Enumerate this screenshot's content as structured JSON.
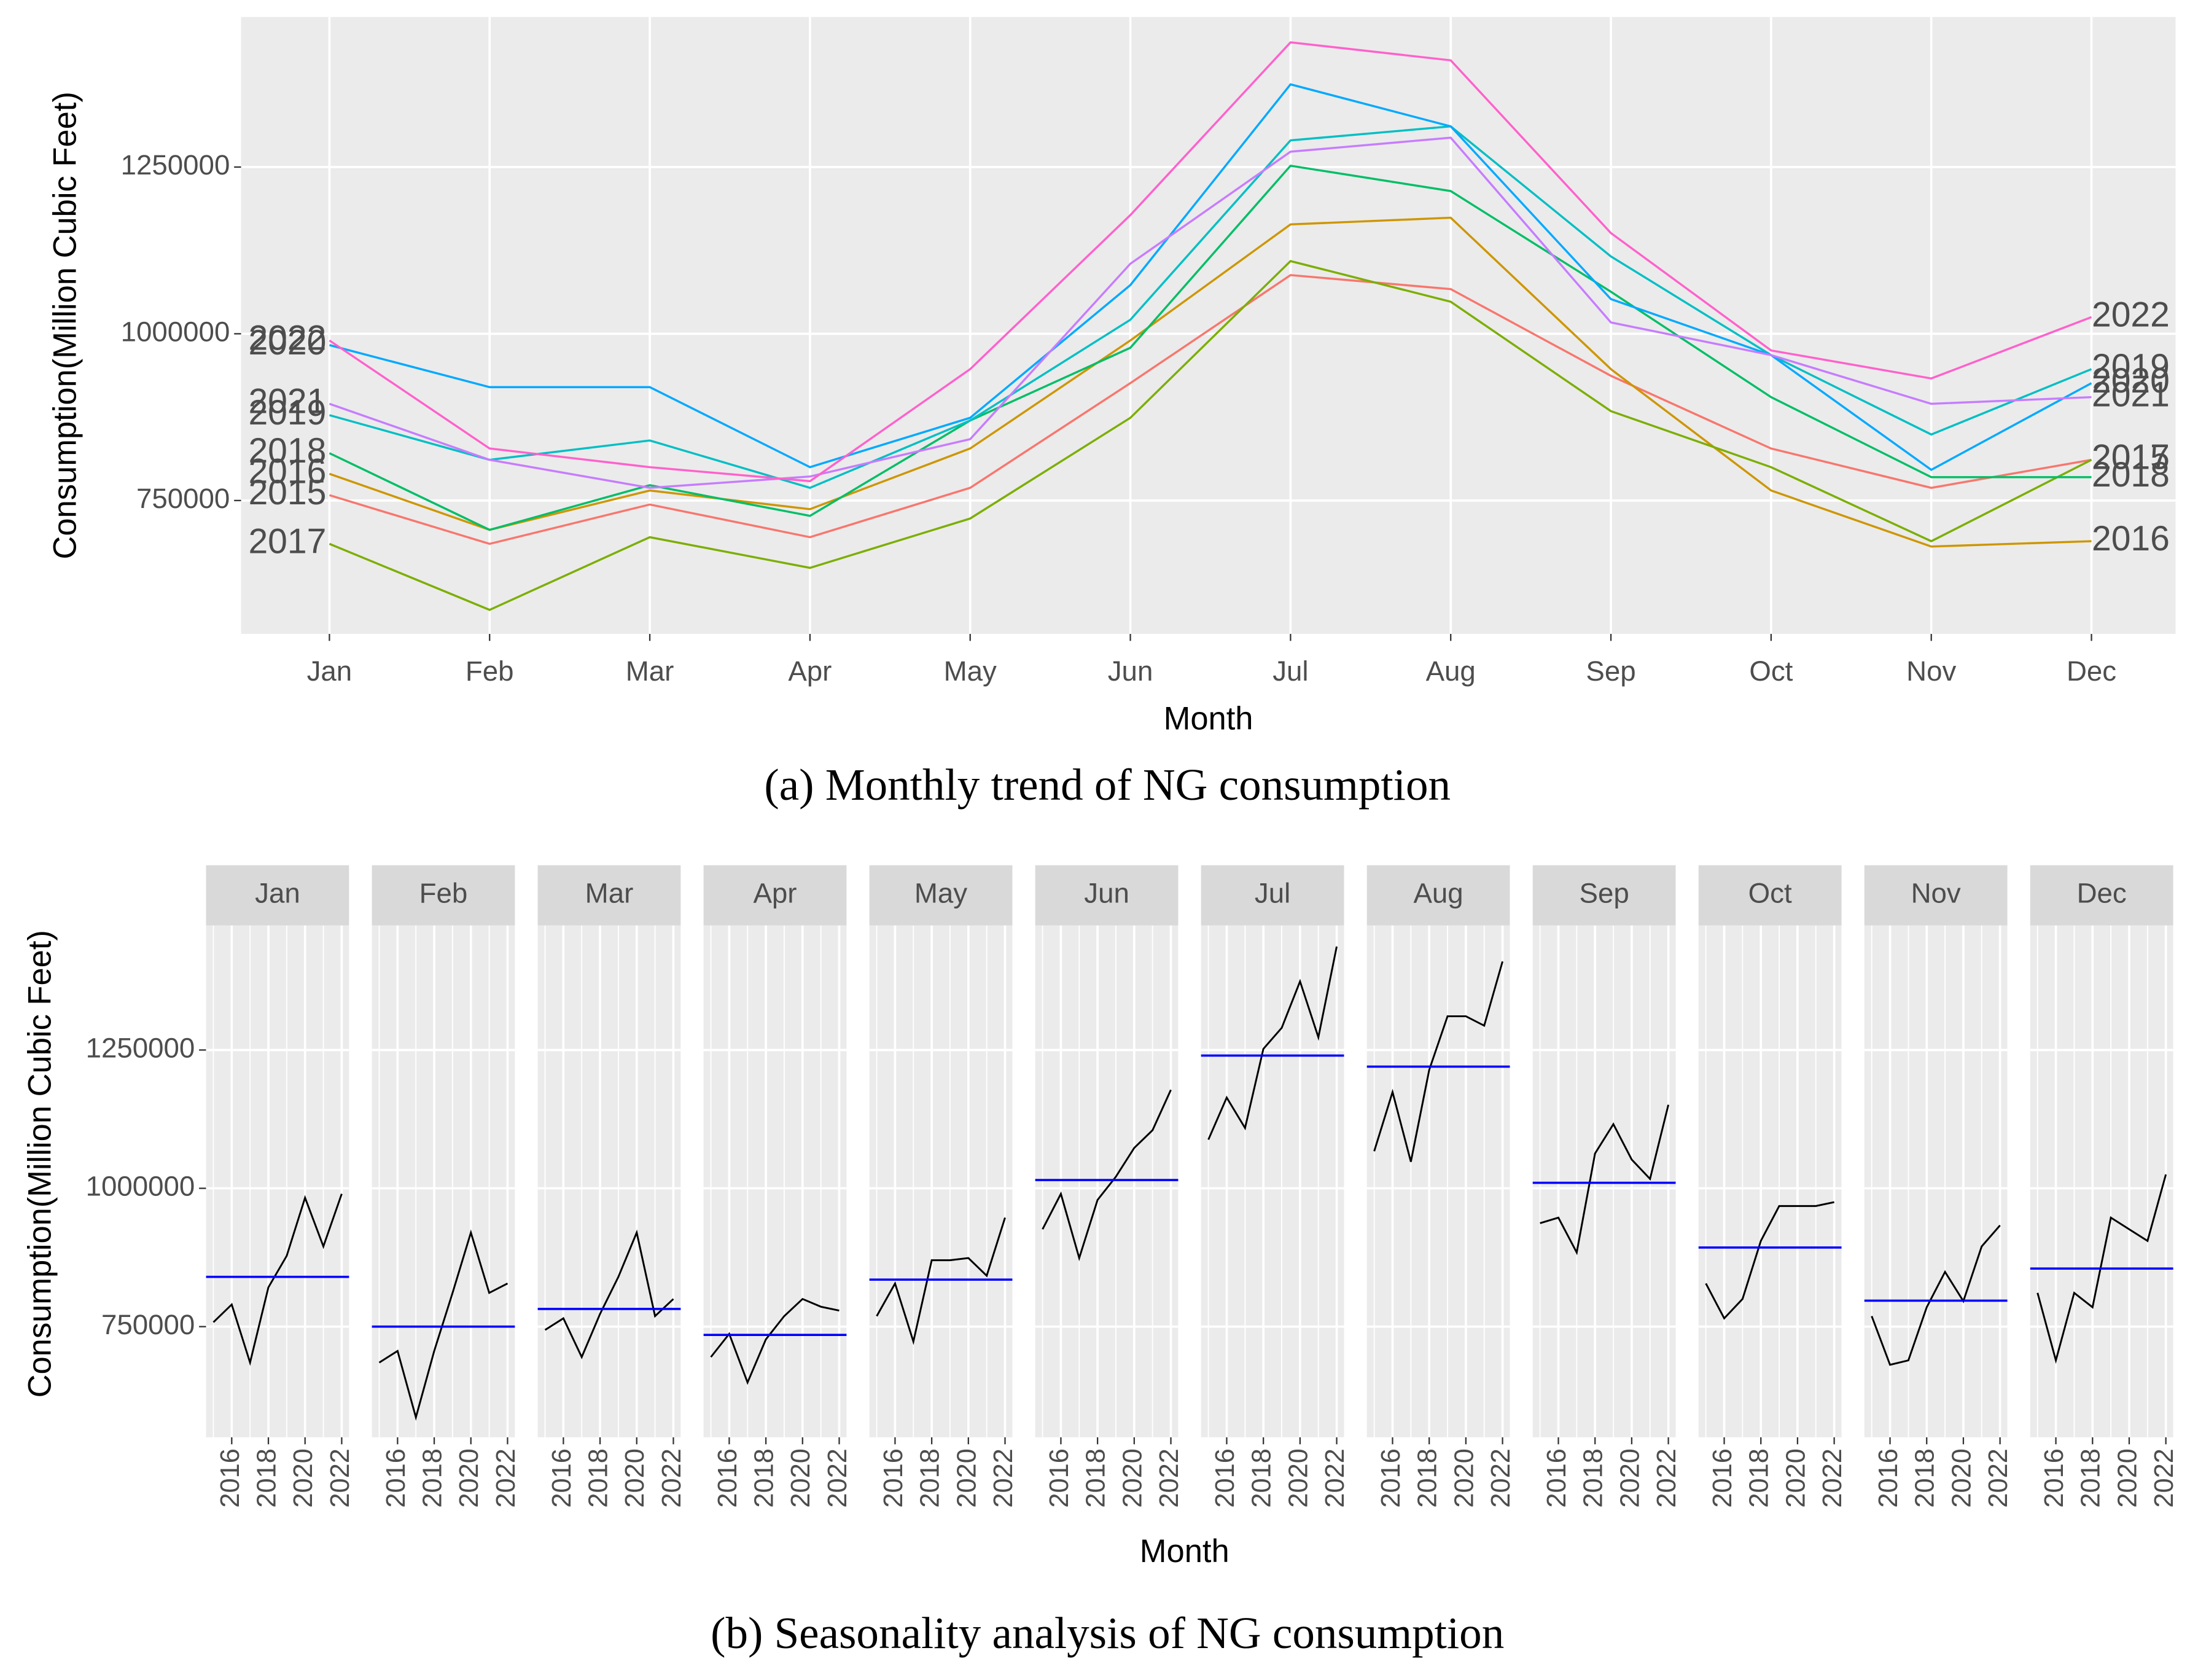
{
  "chart_data": [
    {
      "type": "line",
      "title": "(a) Monthly trend of NG consumption",
      "x_label": "Month",
      "y_label": "Consumption(Million Cubic Feet)",
      "categories": [
        "Jan",
        "Feb",
        "Mar",
        "Apr",
        "May",
        "Jun",
        "Jul",
        "Aug",
        "Sep",
        "Oct",
        "Nov",
        "Dec"
      ],
      "ylim": [
        550000,
        1475000
      ],
      "yticks": [
        750000,
        1000000,
        1250000
      ],
      "grid": true,
      "series": [
        {
          "name": "2015",
          "color": "#F8766D",
          "values": [
            758000,
            685000,
            744000,
            695000,
            769000,
            926000,
            1088000,
            1067000,
            937000,
            828000,
            769000,
            811000
          ]
        },
        {
          "name": "2016",
          "color": "#CD9600",
          "values": [
            790000,
            706000,
            765000,
            737000,
            828000,
            990000,
            1164000,
            1174000,
            947000,
            765000,
            681000,
            689000
          ]
        },
        {
          "name": "2017",
          "color": "#7CAE00",
          "values": [
            685000,
            586000,
            695000,
            649000,
            723000,
            874000,
            1109000,
            1048000,
            884000,
            800000,
            689000,
            811000
          ]
        },
        {
          "name": "2018",
          "color": "#00BE67",
          "values": [
            821000,
            706000,
            773000,
            727000,
            870000,
            979000,
            1252000,
            1214000,
            1063000,
            905000,
            785000,
            785000
          ]
        },
        {
          "name": "2019",
          "color": "#00BFC4",
          "values": [
            878000,
            811000,
            840000,
            769000,
            870000,
            1021000,
            1290000,
            1311000,
            1116000,
            968000,
            849000,
            947000
          ]
        },
        {
          "name": "2020",
          "color": "#00A9FF",
          "values": [
            983000,
            920000,
            920000,
            800000,
            874000,
            1073000,
            1374000,
            1311000,
            1052000,
            968000,
            796000,
            926000
          ]
        },
        {
          "name": "2021",
          "color": "#C77CFF",
          "values": [
            895000,
            811000,
            769000,
            786000,
            842000,
            1105000,
            1273000,
            1294000,
            1017000,
            968000,
            895000,
            905000
          ]
        },
        {
          "name": "2022",
          "color": "#FF61CC",
          "values": [
            990000,
            828000,
            800000,
            779000,
            947000,
            1178000,
            1437000,
            1410000,
            1151000,
            975000,
            933000,
            1025000
          ]
        }
      ]
    },
    {
      "type": "seasonal",
      "title": "(b) Seasonality analysis of NG consumption",
      "x_label": "Month",
      "y_label": "Consumption(Million Cubic Feet)",
      "ylim": [
        550000,
        1475000
      ],
      "yticks": [
        750000,
        1000000,
        1250000
      ],
      "x": [
        2015,
        2016,
        2017,
        2018,
        2019,
        2020,
        2021,
        2022
      ],
      "xlim": [
        2014.6,
        2022.4
      ],
      "xticks": [
        2016,
        2018,
        2020,
        2022
      ],
      "line_color": "#000000",
      "mean_color": "#0000FF",
      "means": [
        840000,
        750000,
        782000,
        735000,
        835000,
        1015000,
        1240000,
        1220000,
        1010000,
        893000,
        797000,
        855000
      ]
    }
  ]
}
